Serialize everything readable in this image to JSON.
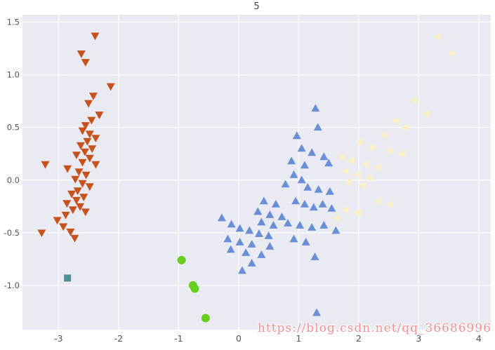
{
  "watermark": "https://blog.csdn.net/qq_36686996",
  "colors": {
    "figure_bg": "#ffffff",
    "axes_bg": "#eaeaf2",
    "grid": "#ffffff",
    "tick_label": "#555555",
    "title": "#444444",
    "watermark": "#f19191"
  },
  "chart_data": {
    "type": "scatter",
    "title": "5",
    "xlabel": "",
    "ylabel": "",
    "xlim": [
      -3.6,
      4.2
    ],
    "ylim": [
      -1.42,
      1.57
    ],
    "xticks": [
      -3,
      -2,
      -1,
      0,
      1,
      2,
      3,
      4
    ],
    "xtick_labels": [
      "-3",
      "-2",
      "-1",
      "0",
      "1",
      "2",
      "3",
      "4"
    ],
    "yticks": [
      -1.0,
      -0.5,
      0.0,
      0.5,
      1.0,
      1.5
    ],
    "ytick_labels": [
      "-1.0",
      "-0.5",
      "0.0",
      "0.5",
      "1.0",
      "1.5"
    ],
    "grid": true,
    "legend": false,
    "series": [
      {
        "name": "cluster-orange",
        "marker": "triangle-down",
        "color": "#c6531e",
        "size": 6,
        "points": [
          [
            -2.39,
            1.37
          ],
          [
            -2.62,
            1.2
          ],
          [
            -2.55,
            1.12
          ],
          [
            -2.13,
            0.89
          ],
          [
            -2.42,
            0.8
          ],
          [
            -2.5,
            0.73
          ],
          [
            -2.32,
            0.62
          ],
          [
            -2.45,
            0.57
          ],
          [
            -2.55,
            0.52
          ],
          [
            -2.6,
            0.47
          ],
          [
            -2.48,
            0.44
          ],
          [
            -2.38,
            0.4
          ],
          [
            -2.52,
            0.37
          ],
          [
            -2.63,
            0.33
          ],
          [
            -2.44,
            0.3
          ],
          [
            -2.56,
            0.27
          ],
          [
            -2.7,
            0.24
          ],
          [
            -2.48,
            0.21
          ],
          [
            -2.6,
            0.17
          ],
          [
            -2.38,
            0.15
          ],
          [
            -3.22,
            0.15
          ],
          [
            -2.85,
            0.11
          ],
          [
            -2.66,
            0.08
          ],
          [
            -2.54,
            0.05
          ],
          [
            -2.72,
            0.01
          ],
          [
            -2.6,
            -0.03
          ],
          [
            -2.48,
            -0.06
          ],
          [
            -2.68,
            -0.1
          ],
          [
            -2.78,
            -0.13
          ],
          [
            -2.58,
            -0.16
          ],
          [
            -2.7,
            -0.19
          ],
          [
            -2.86,
            -0.22
          ],
          [
            -2.64,
            -0.25
          ],
          [
            -2.76,
            -0.28
          ],
          [
            -2.55,
            -0.3
          ],
          [
            -2.88,
            -0.33
          ],
          [
            -3.02,
            -0.38
          ],
          [
            -2.92,
            -0.44
          ],
          [
            -2.8,
            -0.49
          ],
          [
            -3.28,
            -0.5
          ],
          [
            -2.73,
            -0.55
          ]
        ]
      },
      {
        "name": "cluster-blue",
        "marker": "triangle-up",
        "color": "#6b8fd6",
        "size": 6,
        "points": [
          [
            1.28,
            0.68
          ],
          [
            1.32,
            0.5
          ],
          [
            0.97,
            0.42
          ],
          [
            1.05,
            0.3
          ],
          [
            1.22,
            0.26
          ],
          [
            1.42,
            0.22
          ],
          [
            0.88,
            0.18
          ],
          [
            1.1,
            0.14
          ],
          [
            1.5,
            0.16
          ],
          [
            0.92,
            0.05
          ],
          [
            1.05,
            0.0
          ],
          [
            0.78,
            -0.04
          ],
          [
            1.15,
            -0.07
          ],
          [
            1.33,
            -0.09
          ],
          [
            1.52,
            -0.11
          ],
          [
            0.42,
            -0.2
          ],
          [
            0.62,
            -0.23
          ],
          [
            0.95,
            -0.2
          ],
          [
            1.1,
            -0.23
          ],
          [
            1.25,
            -0.26
          ],
          [
            1.4,
            -0.23
          ],
          [
            1.55,
            -0.27
          ],
          [
            0.32,
            -0.3
          ],
          [
            0.52,
            -0.33
          ],
          [
            0.72,
            -0.35
          ],
          [
            0.38,
            -0.4
          ],
          [
            0.58,
            -0.43
          ],
          [
            0.82,
            -0.41
          ],
          [
            1.02,
            -0.43
          ],
          [
            1.22,
            -0.45
          ],
          [
            1.42,
            -0.43
          ],
          [
            1.62,
            -0.48
          ],
          [
            -0.28,
            -0.36
          ],
          [
            -0.12,
            -0.42
          ],
          [
            0.02,
            -0.46
          ],
          [
            0.18,
            -0.48
          ],
          [
            0.34,
            -0.51
          ],
          [
            0.5,
            -0.53
          ],
          [
            -0.18,
            -0.56
          ],
          [
            0.02,
            -0.59
          ],
          [
            0.22,
            -0.61
          ],
          [
            0.52,
            -0.63
          ],
          [
            0.92,
            -0.56
          ],
          [
            1.12,
            -0.59
          ],
          [
            -0.13,
            -0.66
          ],
          [
            0.12,
            -0.69
          ],
          [
            0.38,
            -0.71
          ],
          [
            1.27,
            -0.73
          ],
          [
            0.22,
            -0.79
          ],
          [
            0.06,
            -0.86
          ],
          [
            1.3,
            -1.26
          ]
        ]
      },
      {
        "name": "cluster-cream",
        "marker": "triangle-left",
        "color": "#f8f0c8",
        "size": 6,
        "points": [
          [
            3.32,
            1.36
          ],
          [
            3.55,
            1.2
          ],
          [
            2.92,
            0.76
          ],
          [
            3.12,
            0.63
          ],
          [
            2.62,
            0.56
          ],
          [
            2.78,
            0.5
          ],
          [
            2.42,
            0.43
          ],
          [
            2.02,
            0.36
          ],
          [
            2.22,
            0.31
          ],
          [
            2.52,
            0.28
          ],
          [
            2.72,
            0.25
          ],
          [
            1.72,
            0.22
          ],
          [
            1.88,
            0.18
          ],
          [
            2.12,
            0.15
          ],
          [
            2.32,
            0.12
          ],
          [
            1.78,
            0.08
          ],
          [
            1.98,
            0.05
          ],
          [
            2.18,
            0.02
          ],
          [
            1.83,
            -0.02
          ],
          [
            2.06,
            -0.05
          ],
          [
            2.32,
            -0.2
          ],
          [
            2.52,
            -0.23
          ],
          [
            1.78,
            -0.28
          ],
          [
            1.98,
            -0.31
          ],
          [
            1.63,
            -0.36
          ]
        ]
      },
      {
        "name": "cluster-green",
        "marker": "circle",
        "color": "#66d01f",
        "size": 6,
        "points": [
          [
            -0.95,
            -0.76
          ],
          [
            -0.76,
            -1.0
          ],
          [
            -0.73,
            -1.03
          ],
          [
            -0.55,
            -1.31
          ]
        ]
      },
      {
        "name": "cluster-teal",
        "marker": "square",
        "color": "#4f9090",
        "size": 5,
        "points": [
          [
            -2.85,
            -0.93
          ]
        ]
      }
    ]
  }
}
